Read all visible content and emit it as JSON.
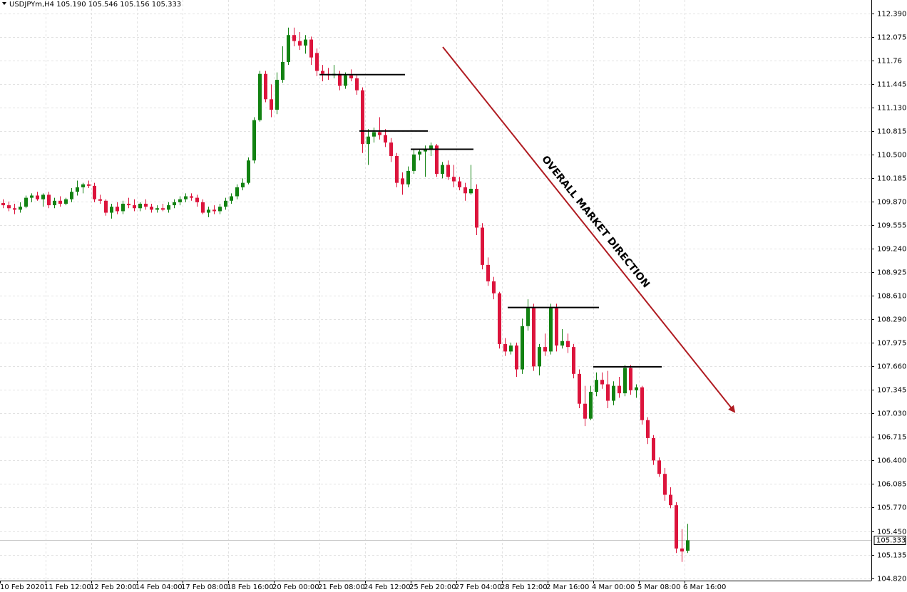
{
  "chart_data": {
    "type": "candlestick",
    "header": "USDJPYm,H4  105.190 105.546 105.156 105.333",
    "annotation": "OVERALL MARKET DIRECTION",
    "up_color": "#128212",
    "down_color": "#dc143c",
    "grid": true,
    "ylim": [
      104.79,
      112.57
    ],
    "yticks": [
      {
        "value": 112.39,
        "label": "112.390"
      },
      112.075,
      111.76,
      111.445,
      {
        "value": 111.13,
        "label": "111.130"
      },
      110.815,
      {
        "value": 110.5,
        "label": "110.500"
      },
      110.185,
      {
        "value": 109.87,
        "label": "109.870"
      },
      109.555,
      {
        "value": 109.24,
        "label": "109.240"
      },
      108.925,
      {
        "value": 108.61,
        "label": "108.610"
      },
      {
        "value": 108.29,
        "label": "108.290"
      },
      107.975,
      {
        "value": 107.66,
        "label": "107.660"
      },
      107.345,
      {
        "value": 107.03,
        "label": "107.030"
      },
      106.715,
      {
        "value": 106.4,
        "label": "106.400"
      },
      106.085,
      {
        "value": 105.77,
        "label": "105.770"
      },
      {
        "value": 105.45,
        "label": "105.450"
      },
      105.135,
      {
        "value": 104.82,
        "label": "104.820"
      }
    ],
    "last_price": 105.333,
    "levels": [
      {
        "value": 111.57,
        "from": 56,
        "to": 70
      },
      {
        "value": 110.815,
        "from": 63,
        "to": 74
      },
      {
        "value": 110.57,
        "from": 72,
        "to": 82
      },
      {
        "value": 108.45,
        "from": 89,
        "to": 104
      },
      {
        "value": 107.655,
        "from": 104,
        "to": 115
      }
    ],
    "categories": [
      "10 Feb 2020",
      null,
      null,
      null,
      null,
      null,
      null,
      null,
      "11 Feb 12:00",
      null,
      null,
      null,
      null,
      null,
      null,
      null,
      "12 Feb 20:00",
      null,
      null,
      null,
      null,
      null,
      null,
      null,
      "14 Feb 04:00",
      null,
      null,
      null,
      null,
      null,
      null,
      null,
      "17 Feb 08:00",
      null,
      null,
      null,
      null,
      null,
      null,
      null,
      "18 Feb 16:00",
      null,
      null,
      null,
      null,
      null,
      null,
      null,
      "20 Feb 00:00",
      null,
      null,
      null,
      null,
      null,
      null,
      null,
      "21 Feb 08:00",
      null,
      null,
      null,
      null,
      null,
      null,
      null,
      "24 Feb 12:00",
      null,
      null,
      null,
      null,
      null,
      null,
      null,
      "25 Feb 20:00",
      null,
      null,
      null,
      null,
      null,
      null,
      null,
      "27 Feb 04:00",
      null,
      null,
      null,
      null,
      null,
      null,
      null,
      "28 Feb 12:00",
      null,
      null,
      null,
      null,
      null,
      null,
      null,
      "2 Mar 16:00",
      null,
      null,
      null,
      null,
      null,
      null,
      null,
      "4 Mar 00:00",
      null,
      null,
      null,
      null,
      null,
      null,
      null,
      "5 Mar 08:00",
      null,
      null,
      null,
      null,
      null,
      null,
      null,
      "6 Mar 16:00"
    ],
    "candles": [
      [
        109.85,
        109.9,
        109.78,
        109.82
      ],
      [
        109.82,
        109.87,
        109.74,
        109.78
      ],
      [
        109.78,
        109.84,
        109.7,
        109.76
      ],
      [
        109.76,
        109.86,
        109.72,
        109.8
      ],
      [
        109.8,
        109.95,
        109.78,
        109.92
      ],
      [
        109.92,
        109.98,
        109.86,
        109.95
      ],
      [
        109.95,
        110.0,
        109.88,
        109.9
      ],
      [
        109.9,
        109.98,
        109.8,
        109.96
      ],
      [
        109.96,
        110.0,
        109.78,
        109.82
      ],
      [
        109.82,
        109.92,
        109.78,
        109.88
      ],
      [
        109.88,
        109.94,
        109.8,
        109.84
      ],
      [
        109.84,
        109.92,
        109.82,
        109.9
      ],
      [
        109.9,
        110.05,
        109.86,
        110.0
      ],
      [
        110.0,
        110.15,
        109.95,
        110.06
      ],
      [
        110.06,
        110.12,
        109.98,
        110.1
      ],
      [
        110.1,
        110.15,
        110.05,
        110.08
      ],
      [
        110.08,
        110.12,
        109.86,
        109.9
      ],
      [
        109.9,
        109.96,
        109.84,
        109.88
      ],
      [
        109.88,
        109.9,
        109.68,
        109.72
      ],
      [
        109.72,
        109.84,
        109.64,
        109.8
      ],
      [
        109.8,
        109.86,
        109.7,
        109.74
      ],
      [
        109.74,
        109.88,
        109.7,
        109.84
      ],
      [
        109.84,
        109.92,
        109.78,
        109.82
      ],
      [
        109.82,
        109.9,
        109.74,
        109.78
      ],
      [
        109.78,
        109.86,
        109.74,
        109.84
      ],
      [
        109.84,
        109.9,
        109.76,
        109.8
      ],
      [
        109.8,
        109.84,
        109.72,
        109.76
      ],
      [
        109.76,
        109.82,
        109.72,
        109.78
      ],
      [
        109.78,
        109.84,
        109.74,
        109.76
      ],
      [
        109.76,
        109.86,
        109.72,
        109.82
      ],
      [
        109.82,
        109.9,
        109.78,
        109.86
      ],
      [
        109.86,
        109.94,
        109.82,
        109.9
      ],
      [
        109.9,
        109.98,
        109.86,
        109.94
      ],
      [
        109.94,
        109.98,
        109.88,
        109.92
      ],
      [
        109.92,
        109.96,
        109.8,
        109.86
      ],
      [
        109.86,
        109.9,
        109.7,
        109.72
      ],
      [
        109.72,
        109.8,
        109.66,
        109.76
      ],
      [
        109.76,
        109.82,
        109.7,
        109.74
      ],
      [
        109.74,
        109.84,
        109.7,
        109.8
      ],
      [
        109.8,
        109.92,
        109.76,
        109.88
      ],
      [
        109.88,
        109.98,
        109.84,
        109.94
      ],
      [
        109.94,
        110.1,
        109.9,
        110.06
      ],
      [
        110.06,
        110.18,
        110.02,
        110.12
      ],
      [
        110.12,
        110.46,
        110.1,
        110.42
      ],
      [
        110.42,
        111.0,
        110.38,
        110.96
      ],
      [
        110.96,
        111.62,
        110.94,
        111.58
      ],
      [
        111.58,
        111.62,
        111.2,
        111.24
      ],
      [
        111.24,
        111.44,
        111.0,
        111.1
      ],
      [
        111.1,
        111.6,
        111.04,
        111.5
      ],
      [
        111.5,
        111.95,
        111.46,
        111.74
      ],
      [
        111.74,
        112.2,
        111.7,
        112.1
      ],
      [
        112.1,
        112.2,
        111.95,
        112.02
      ],
      [
        112.02,
        112.14,
        111.9,
        111.96
      ],
      [
        111.96,
        112.1,
        111.85,
        112.04
      ],
      [
        112.04,
        112.08,
        111.7,
        111.8
      ],
      [
        111.86,
        111.92,
        111.55,
        111.62
      ],
      [
        111.62,
        111.7,
        111.48,
        111.58
      ],
      [
        111.58,
        111.66,
        111.5,
        111.56
      ],
      [
        111.56,
        111.7,
        111.52,
        111.58
      ],
      [
        111.58,
        111.62,
        111.36,
        111.42
      ],
      [
        111.42,
        111.6,
        111.38,
        111.56
      ],
      [
        111.56,
        111.64,
        111.48,
        111.52
      ],
      [
        111.52,
        111.56,
        111.3,
        111.36
      ],
      [
        111.36,
        111.4,
        110.52,
        110.64
      ],
      [
        110.64,
        110.84,
        110.36,
        110.74
      ],
      [
        110.74,
        110.86,
        110.66,
        110.8
      ],
      [
        110.8,
        111.0,
        110.7,
        110.76
      ],
      [
        110.76,
        110.84,
        110.6,
        110.66
      ],
      [
        110.66,
        110.72,
        110.4,
        110.48
      ],
      [
        110.48,
        110.52,
        110.06,
        110.12
      ],
      [
        110.18,
        110.26,
        109.96,
        110.1
      ],
      [
        110.1,
        110.34,
        110.06,
        110.28
      ],
      [
        110.28,
        110.56,
        110.24,
        110.5
      ],
      [
        110.5,
        110.58,
        110.42,
        110.54
      ],
      [
        110.54,
        110.62,
        110.2,
        110.56
      ],
      [
        110.56,
        110.66,
        110.48,
        110.62
      ],
      [
        110.62,
        110.64,
        110.2,
        110.24
      ],
      [
        110.24,
        110.4,
        110.18,
        110.36
      ],
      [
        110.36,
        110.42,
        110.16,
        110.2
      ],
      [
        110.2,
        110.36,
        110.06,
        110.14
      ],
      [
        110.14,
        110.2,
        110.02,
        110.06
      ],
      [
        110.06,
        110.12,
        109.88,
        109.98
      ],
      [
        109.98,
        110.36,
        109.96,
        110.04
      ],
      [
        110.04,
        110.1,
        109.42,
        109.52
      ],
      [
        109.52,
        109.58,
        108.96,
        109.02
      ],
      [
        109.02,
        109.12,
        108.74,
        108.8
      ],
      [
        108.8,
        108.86,
        108.56,
        108.64
      ],
      [
        108.64,
        108.66,
        107.9,
        107.96
      ],
      [
        107.96,
        108.04,
        107.8,
        107.86
      ],
      [
        107.86,
        107.98,
        107.82,
        107.94
      ],
      [
        107.94,
        107.98,
        107.52,
        107.62
      ],
      [
        107.62,
        108.3,
        107.56,
        108.2
      ],
      [
        108.2,
        108.56,
        108.14,
        108.44
      ],
      [
        108.44,
        108.5,
        107.6,
        107.66
      ],
      [
        107.66,
        107.96,
        107.54,
        107.92
      ],
      [
        107.92,
        108.1,
        107.8,
        107.86
      ],
      [
        107.86,
        108.5,
        107.82,
        108.44
      ],
      [
        108.44,
        108.5,
        107.86,
        107.94
      ],
      [
        107.94,
        108.16,
        107.9,
        108.0
      ],
      [
        108.0,
        108.1,
        107.84,
        107.92
      ],
      [
        107.92,
        107.96,
        107.5,
        107.56
      ],
      [
        107.56,
        107.62,
        107.1,
        107.16
      ],
      [
        107.16,
        107.4,
        106.86,
        106.96
      ],
      [
        106.96,
        107.4,
        106.94,
        107.32
      ],
      [
        107.32,
        107.58,
        107.26,
        107.48
      ],
      [
        107.48,
        107.58,
        107.36,
        107.42
      ],
      [
        107.42,
        107.6,
        107.1,
        107.2
      ],
      [
        107.2,
        107.46,
        107.14,
        107.4
      ],
      [
        107.4,
        107.52,
        107.24,
        107.3
      ],
      [
        107.3,
        107.68,
        107.26,
        107.64
      ],
      [
        107.64,
        107.68,
        107.28,
        107.34
      ],
      [
        107.34,
        107.42,
        107.24,
        107.38
      ],
      [
        107.38,
        107.4,
        106.88,
        106.94
      ],
      [
        106.94,
        106.98,
        106.62,
        106.7
      ],
      [
        106.7,
        106.74,
        106.34,
        106.4
      ],
      [
        106.4,
        106.44,
        106.18,
        106.22
      ],
      [
        106.22,
        106.3,
        105.86,
        105.94
      ],
      [
        105.94,
        106.04,
        105.76,
        105.8
      ],
      [
        105.8,
        105.84,
        105.16,
        105.22
      ],
      [
        105.22,
        105.48,
        105.04,
        105.18
      ],
      [
        105.19,
        105.55,
        105.16,
        105.33
      ]
    ]
  }
}
